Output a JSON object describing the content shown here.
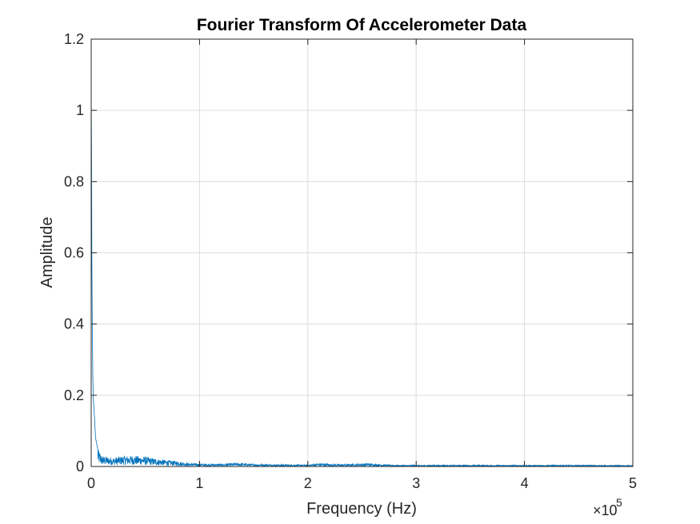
{
  "chart_data": {
    "type": "line",
    "title": "Fourier Transform Of Accelerometer Data",
    "xlabel": "Frequency (Hz)",
    "ylabel": "Amplitude",
    "x_exponent_base": "×10",
    "x_exponent_power": "5",
    "xlim": [
      0,
      500000
    ],
    "ylim": [
      0,
      1.2
    ],
    "xticks": [
      0,
      100000,
      200000,
      300000,
      400000,
      500000
    ],
    "xtick_labels": [
      "0",
      "1",
      "2",
      "3",
      "4",
      "5"
    ],
    "yticks": [
      0,
      0.2,
      0.4,
      0.6,
      0.8,
      1.0,
      1.2
    ],
    "ytick_labels": [
      "0",
      "0.2",
      "0.4",
      "0.6",
      "0.8",
      "1",
      "1.2"
    ],
    "grid": true,
    "series": [
      {
        "color": "#0072BD",
        "points": [
          [
            0,
            1.06
          ],
          [
            300,
            0.9
          ],
          [
            600,
            0.6
          ],
          [
            1000,
            0.4
          ],
          [
            1500,
            0.25
          ],
          [
            2000,
            0.19
          ],
          [
            3000,
            0.14
          ],
          [
            4000,
            0.08
          ],
          [
            6000,
            0.05
          ],
          [
            10000,
            0.03
          ],
          [
            20000,
            0.025
          ],
          [
            30000,
            0.03
          ],
          [
            40000,
            0.03
          ],
          [
            50000,
            0.028
          ],
          [
            60000,
            0.022
          ],
          [
            70000,
            0.018
          ],
          [
            80000,
            0.015
          ],
          [
            90000,
            0.009
          ],
          [
            100000,
            0.008
          ],
          [
            120000,
            0.007
          ],
          [
            135000,
            0.01
          ],
          [
            150000,
            0.007
          ],
          [
            170000,
            0.006
          ],
          [
            200000,
            0.005
          ],
          [
            210000,
            0.009
          ],
          [
            230000,
            0.006
          ],
          [
            255000,
            0.009
          ],
          [
            280000,
            0.004
          ],
          [
            320000,
            0.004
          ],
          [
            360000,
            0.004
          ],
          [
            400000,
            0.004
          ],
          [
            450000,
            0.004
          ],
          [
            500000,
            0.003
          ]
        ]
      }
    ]
  }
}
